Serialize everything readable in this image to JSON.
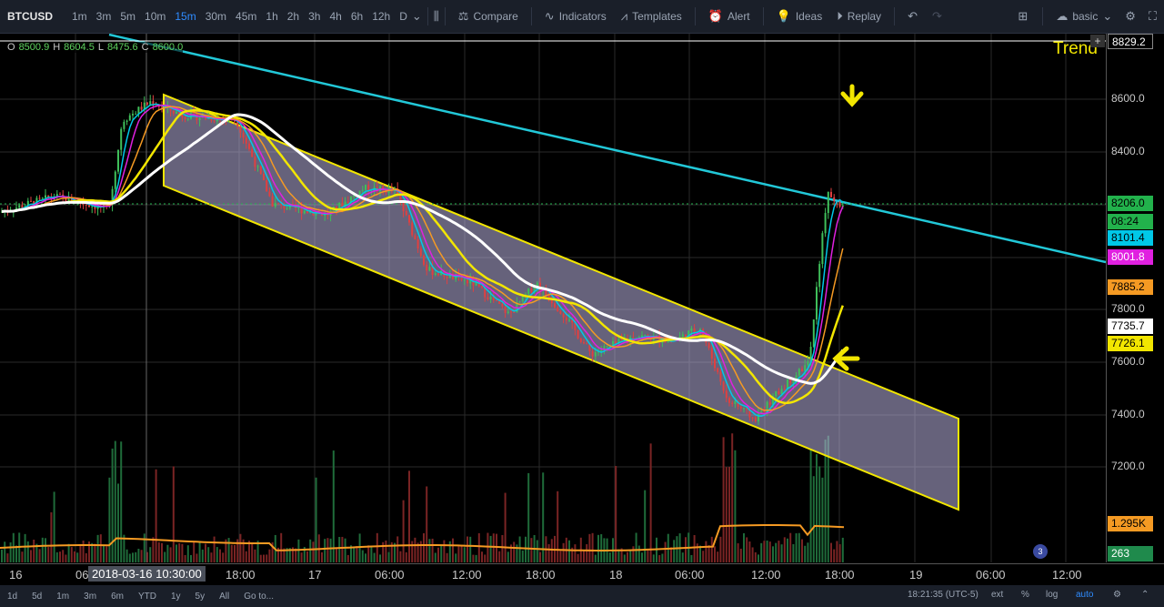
{
  "toolbar": {
    "symbol": "BTCUSD",
    "intervals": [
      "1m",
      "3m",
      "5m",
      "10m",
      "15m",
      "30m",
      "45m",
      "1h",
      "2h",
      "3h",
      "4h",
      "6h",
      "12h",
      "D"
    ],
    "active_interval": "15m",
    "compare": "Compare",
    "indicators": "Indicators",
    "templates": "Templates",
    "alert": "Alert",
    "ideas": "Ideas",
    "replay": "Replay",
    "layout": "basic"
  },
  "ohlc": {
    "o_label": "O",
    "o": "8500.9",
    "h_label": "H",
    "h": "8604.5",
    "l_label": "L",
    "l": "8475.6",
    "c_label": "C",
    "c": "8600.0"
  },
  "annotation": {
    "trend_label": "Trend"
  },
  "price_axis": {
    "ticks": [
      "8600.0",
      "8400.0",
      "8200.0",
      "8000.0",
      "7800.0",
      "7600.0",
      "7400.0",
      "7200.0"
    ],
    "top_value": "8829.2",
    "badges": [
      {
        "value": "8206.0",
        "color": "#22b24c"
      },
      {
        "value": "08:24",
        "color": "#22b24c"
      },
      {
        "value": "8101.4",
        "color": "#00c8e8"
      },
      {
        "value": "8001.8",
        "color": "#e020e0"
      },
      {
        "value": "7885.2",
        "color": "#f59a23"
      },
      {
        "value": "7735.7",
        "color": "#ffffff"
      },
      {
        "value": "7726.1",
        "color": "#f2e600"
      },
      {
        "value": "1.295K",
        "color": "#f59a23"
      },
      {
        "value": "263",
        "color": "#1f8a4c"
      }
    ]
  },
  "time_axis": {
    "ticks": [
      "16",
      "06",
      "18:00",
      "17",
      "06:00",
      "12:00",
      "18:00",
      "18",
      "06:00",
      "12:00",
      "18:00",
      "19",
      "06:00",
      "12:00"
    ],
    "cursor_label": "2018-03-16 10:30:00"
  },
  "bottom_bar": {
    "ranges": [
      "1d",
      "5d",
      "1m",
      "3m",
      "6m",
      "YTD",
      "1y",
      "5y",
      "All",
      "Go to..."
    ],
    "clock": "18:21:35 (UTC-5)",
    "ext": "ext",
    "percent": "%",
    "log": "log",
    "auto": "auto"
  },
  "flag_count": "3",
  "colors": {
    "trendline": "#22c8d8",
    "channel": "#f2e600",
    "channel_fill": "#b9b3e0",
    "arrow": "#f2e600"
  }
}
